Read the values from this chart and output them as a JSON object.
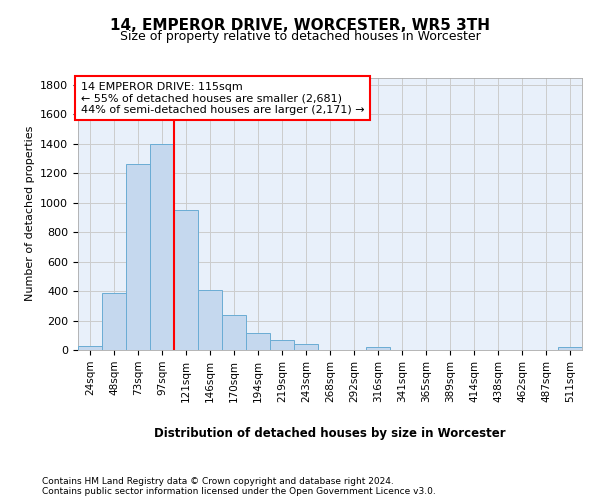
{
  "title1": "14, EMPEROR DRIVE, WORCESTER, WR5 3TH",
  "title2": "Size of property relative to detached houses in Worcester",
  "xlabel": "Distribution of detached houses by size in Worcester",
  "ylabel": "Number of detached properties",
  "footnote1": "Contains HM Land Registry data © Crown copyright and database right 2024.",
  "footnote2": "Contains public sector information licensed under the Open Government Licence v3.0.",
  "annotation_line1": "14 EMPEROR DRIVE: 115sqm",
  "annotation_line2": "← 55% of detached houses are smaller (2,681)",
  "annotation_line3": "44% of semi-detached houses are larger (2,171) →",
  "bar_labels": [
    "24sqm",
    "48sqm",
    "73sqm",
    "97sqm",
    "121sqm",
    "146sqm",
    "170sqm",
    "194sqm",
    "219sqm",
    "243sqm",
    "268sqm",
    "292sqm",
    "316sqm",
    "341sqm",
    "365sqm",
    "389sqm",
    "414sqm",
    "438sqm",
    "462sqm",
    "487sqm",
    "511sqm"
  ],
  "bar_values": [
    25,
    390,
    1260,
    1400,
    950,
    410,
    235,
    115,
    65,
    42,
    0,
    0,
    18,
    0,
    0,
    0,
    0,
    0,
    0,
    0,
    18
  ],
  "bar_color": "#c5d8ee",
  "bar_edge_color": "#6aacd4",
  "bar_width": 1.0,
  "grid_color": "#cccccc",
  "bg_color": "#e8f0fa",
  "red_line_x": 3.5,
  "ylim": [
    0,
    1850
  ],
  "yticks": [
    0,
    200,
    400,
    600,
    800,
    1000,
    1200,
    1400,
    1600,
    1800
  ]
}
